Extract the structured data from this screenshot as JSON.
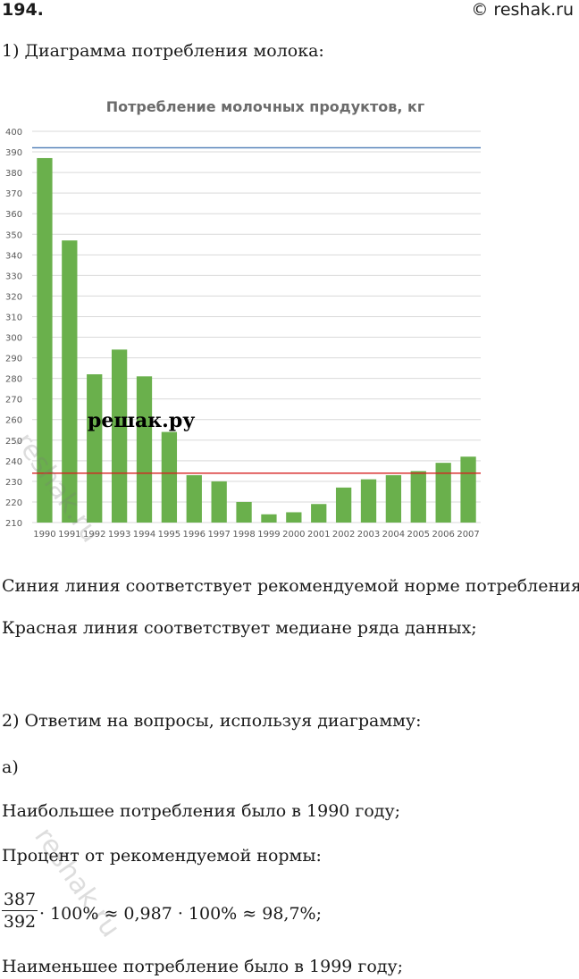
{
  "header": {
    "number": "194.",
    "source": "© reshak.ru"
  },
  "intro": "1) Диаграмма потребления молока:",
  "chart_data": {
    "type": "bar",
    "title": "Потребление молочных продуктов, кг",
    "categories": [
      "1990",
      "1991",
      "1992",
      "1993",
      "1994",
      "1995",
      "1996",
      "1997",
      "1998",
      "1999",
      "2000",
      "2001",
      "2002",
      "2003",
      "2004",
      "2005",
      "2006",
      "2007"
    ],
    "values": [
      387,
      347,
      282,
      294,
      281,
      254,
      233,
      230,
      220,
      214,
      215,
      219,
      227,
      231,
      233,
      235,
      239,
      242
    ],
    "ylim": [
      210,
      400
    ],
    "yticks": [
      210,
      220,
      230,
      240,
      250,
      260,
      270,
      280,
      290,
      300,
      310,
      320,
      330,
      340,
      350,
      360,
      370,
      380,
      390,
      400
    ],
    "reference_lines": [
      {
        "value": 392,
        "color": "#4a7ab5"
      },
      {
        "value": 234,
        "color": "#d62020"
      }
    ],
    "bar_color": "#6ab04c",
    "grid": true
  },
  "watermark": {
    "logo": "решак.ру",
    "ghost": "reshak.ru"
  },
  "lines": {
    "blue_note": "Синия линия соответствует рекомендуемой норме потребления;",
    "red_note": "Красная линия соответствует медиане ряда данных;",
    "part2": "2) Ответим на вопросы, используя диаграмму:",
    "a": "а)",
    "max": "Наибольшее потребления было в 1990 году;",
    "percent": "Процент от рекомендуемой нормы:",
    "frac_num": "387",
    "frac_den": "392",
    "frac_rest": "· 100% ≈ 0,987 · 100% ≈ 98,7%;",
    "min": "Наименьшее потребление было в 1999 году;"
  }
}
